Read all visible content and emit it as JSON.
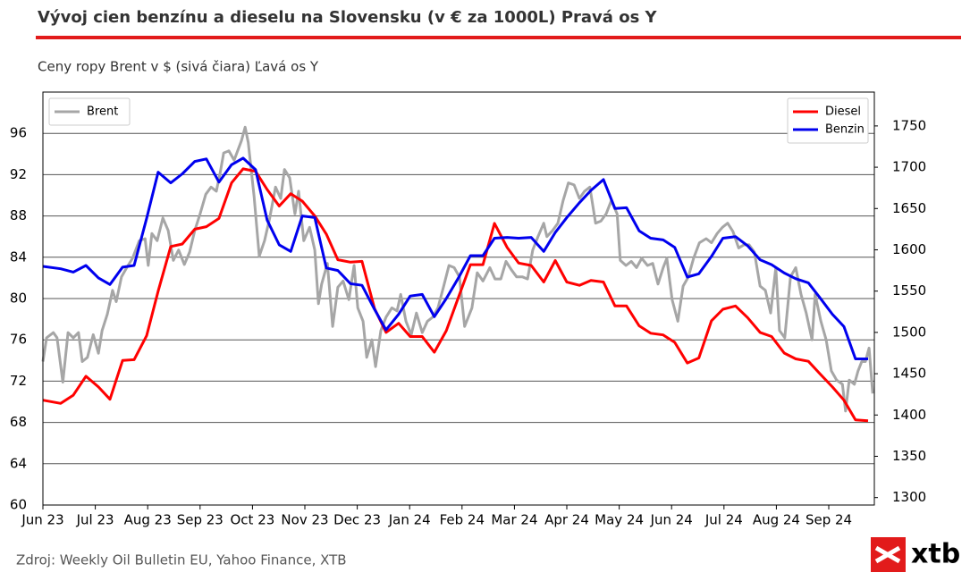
{
  "chart_data": {
    "type": "line",
    "title": "Vývoj cien benzínu a dieselu na Slovensku (v € za 1000L) Pravá os Y",
    "subtitle": "Ceny ropy Brent v $ (sivá čiara) Ľavá os Y",
    "source": "Zdroj: Weekly Oil Bulletin EU, Yahoo Finance, XTB",
    "logo": "xtb",
    "grid": true,
    "legend": {
      "y": "upper left",
      "y2": "upper right"
    },
    "xlim": [
      0,
      15.87
    ],
    "xticks": [
      {
        "value": 0,
        "label": "Jun 23"
      },
      {
        "value": 1,
        "label": "Jul 23"
      },
      {
        "value": 2,
        "label": "Aug 23"
      },
      {
        "value": 3,
        "label": "Sep 23"
      },
      {
        "value": 4,
        "label": "Oct 23"
      },
      {
        "value": 5,
        "label": "Nov 23"
      },
      {
        "value": 6,
        "label": "Dec 23"
      },
      {
        "value": 7,
        "label": "Jan 24"
      },
      {
        "value": 8,
        "label": "Feb 24"
      },
      {
        "value": 9,
        "label": "Mar 24"
      },
      {
        "value": 10,
        "label": "Apr 24"
      },
      {
        "value": 11,
        "label": "May 24"
      },
      {
        "value": 12,
        "label": "Jun 24"
      },
      {
        "value": 13,
        "label": "Jul 24"
      },
      {
        "value": 14,
        "label": "Aug 24"
      },
      {
        "value": 15,
        "label": "Sep 24"
      }
    ],
    "ylim": [
      60,
      100
    ],
    "yticks": [
      60,
      64,
      68,
      72,
      76,
      80,
      84,
      88,
      92,
      96
    ],
    "y2lim": [
      1291,
      1791
    ],
    "y2ticks": [
      1300,
      1350,
      1400,
      1450,
      1500,
      1550,
      1600,
      1650,
      1700,
      1750
    ],
    "series": [
      {
        "name": "Brent",
        "color": "#a6a6a6",
        "axis": "y",
        "x": [
          0,
          0.07,
          0.2,
          0.27,
          0.38,
          0.48,
          0.58,
          0.68,
          0.75,
          0.85,
          0.96,
          1.06,
          1.13,
          1.23,
          1.33,
          1.4,
          1.5,
          1.6,
          1.71,
          1.84,
          1.95,
          2.01,
          2.08,
          2.18,
          2.29,
          2.39,
          2.49,
          2.59,
          2.7,
          2.8,
          2.9,
          3.0,
          3.11,
          3.21,
          3.31,
          3.38,
          3.45,
          3.55,
          3.65,
          3.79,
          3.86,
          3.92,
          4.03,
          4.13,
          4.23,
          4.33,
          4.44,
          4.54,
          4.61,
          4.71,
          4.81,
          4.88,
          4.98,
          5.09,
          5.19,
          5.26,
          5.32,
          5.43,
          5.53,
          5.63,
          5.73,
          5.84,
          5.94,
          6.01,
          6.11,
          6.18,
          6.28,
          6.35,
          6.45,
          6.55,
          6.66,
          6.76,
          6.83,
          6.93,
          7.03,
          7.13,
          7.24,
          7.34,
          7.44,
          7.54,
          7.65,
          7.75,
          7.85,
          7.95,
          8.05,
          8.19,
          8.29,
          8.4,
          8.53,
          8.63,
          8.74,
          8.84,
          8.94,
          9.04,
          9.15,
          9.25,
          9.35,
          9.45,
          9.56,
          9.62,
          9.73,
          9.83,
          9.93,
          10.03,
          10.14,
          10.24,
          10.34,
          10.44,
          10.55,
          10.65,
          10.75,
          10.85,
          10.96,
          11.02,
          11.13,
          11.23,
          11.33,
          11.43,
          11.54,
          11.64,
          11.74,
          11.84,
          11.91,
          12.01,
          12.12,
          12.22,
          12.32,
          12.42,
          12.53,
          12.66,
          12.76,
          12.87,
          12.97,
          13.07,
          13.17,
          13.28,
          13.38,
          13.48,
          13.58,
          13.69,
          13.79,
          13.89,
          13.99,
          14.06,
          14.16,
          14.27,
          14.37,
          14.47,
          14.57,
          14.68,
          14.74,
          14.85,
          14.95,
          15.05,
          15.15,
          15.26,
          15.32,
          15.39,
          15.49,
          15.56,
          15.63,
          15.7,
          15.77,
          15.84
        ],
        "values": [
          73.9,
          76.2,
          76.7,
          76.2,
          71.9,
          76.7,
          76.2,
          76.7,
          73.9,
          74.3,
          76.5,
          74.7,
          76.9,
          78.5,
          80.8,
          79.7,
          82.1,
          83.0,
          83.9,
          85.6,
          85.8,
          83.2,
          86.3,
          85.6,
          87.8,
          86.6,
          83.7,
          84.7,
          83.3,
          84.5,
          86.6,
          88.2,
          90.1,
          90.8,
          90.4,
          92.1,
          94.1,
          94.3,
          93.4,
          95.3,
          96.6,
          95.1,
          89.9,
          84.1,
          85.6,
          87.8,
          90.8,
          89.7,
          92.5,
          91.7,
          88.2,
          90.4,
          85.6,
          86.9,
          84.7,
          79.5,
          81.4,
          83.4,
          77.3,
          81.1,
          81.7,
          79.9,
          83.2,
          79.1,
          77.8,
          74.3,
          76.0,
          73.4,
          76.9,
          78.2,
          79.1,
          78.8,
          80.4,
          77.8,
          76.5,
          78.6,
          76.7,
          77.8,
          78.2,
          79.1,
          81.2,
          83.2,
          83.0,
          82.1,
          77.3,
          79.1,
          82.5,
          81.7,
          83.0,
          81.9,
          81.9,
          83.6,
          82.8,
          82.1,
          82.1,
          81.9,
          84.7,
          86.0,
          87.3,
          86.0,
          86.6,
          87.3,
          89.5,
          91.2,
          91.0,
          89.7,
          90.4,
          90.8,
          87.3,
          87.5,
          88.2,
          89.5,
          88.2,
          83.7,
          83.2,
          83.6,
          83.0,
          83.9,
          83.2,
          83.4,
          81.4,
          83.0,
          83.9,
          79.9,
          77.8,
          81.2,
          82.1,
          83.9,
          85.4,
          85.8,
          85.4,
          86.3,
          86.9,
          87.3,
          86.5,
          84.9,
          85.2,
          85.2,
          84.5,
          81.2,
          80.8,
          78.6,
          83.0,
          76.9,
          76.2,
          82.1,
          83.0,
          80.4,
          78.6,
          76.0,
          80.4,
          77.8,
          76.0,
          73.0,
          72.1,
          71.7,
          69.1,
          72.1,
          71.7,
          73.0,
          73.9,
          73.9,
          75.2,
          70.8
        ]
      },
      {
        "name": "Diesel",
        "color": "#ff0000",
        "axis": "y2",
        "x": [
          0,
          0.34,
          0.58,
          0.82,
          1.06,
          1.28,
          1.52,
          1.74,
          1.98,
          2.2,
          2.44,
          2.66,
          2.9,
          3.12,
          3.36,
          3.6,
          3.82,
          4.06,
          4.28,
          4.51,
          4.73,
          4.95,
          5.19,
          5.41,
          5.63,
          5.87,
          6.09,
          6.33,
          6.55,
          6.79,
          7.01,
          7.24,
          7.47,
          7.7,
          7.94,
          8.16,
          8.4,
          8.62,
          8.86,
          9.08,
          9.32,
          9.56,
          9.78,
          10.0,
          10.24,
          10.46,
          10.7,
          10.92,
          11.14,
          11.38,
          11.6,
          11.84,
          12.06,
          12.3,
          12.52,
          12.76,
          12.98,
          13.22,
          13.45,
          13.69,
          13.91,
          14.15,
          14.37,
          14.61,
          14.83,
          15.07,
          15.29,
          15.51,
          15.75
        ],
        "values": [
          1418,
          1414,
          1424,
          1447,
          1434,
          1419,
          1466,
          1467,
          1496,
          1550,
          1604,
          1607,
          1625,
          1628,
          1638,
          1681,
          1698,
          1695,
          1673,
          1653,
          1668,
          1659,
          1641,
          1619,
          1588,
          1585,
          1586,
          1529,
          1500,
          1511,
          1495,
          1495,
          1476,
          1502,
          1544,
          1582,
          1582,
          1632,
          1603,
          1584,
          1581,
          1561,
          1587,
          1561,
          1557,
          1563,
          1561,
          1532,
          1532,
          1508,
          1499,
          1497,
          1488,
          1463,
          1469,
          1514,
          1528,
          1532,
          1518,
          1500,
          1495,
          1475,
          1468,
          1465,
          1450,
          1434,
          1418,
          1394,
          1393
        ]
      },
      {
        "name": "Benzin",
        "color": "#0000ee",
        "axis": "y2",
        "x": [
          0,
          0.34,
          0.58,
          0.82,
          1.06,
          1.28,
          1.52,
          1.74,
          1.98,
          2.2,
          2.44,
          2.66,
          2.9,
          3.12,
          3.36,
          3.6,
          3.82,
          4.06,
          4.28,
          4.51,
          4.73,
          4.95,
          5.19,
          5.41,
          5.63,
          5.87,
          6.09,
          6.33,
          6.55,
          6.79,
          7.01,
          7.24,
          7.47,
          7.7,
          7.94,
          8.16,
          8.4,
          8.62,
          8.86,
          9.08,
          9.32,
          9.56,
          9.78,
          10.0,
          10.24,
          10.46,
          10.7,
          10.92,
          11.14,
          11.38,
          11.6,
          11.84,
          12.06,
          12.3,
          12.52,
          12.76,
          12.98,
          13.22,
          13.45,
          13.69,
          13.91,
          14.15,
          14.37,
          14.61,
          14.83,
          15.07,
          15.29,
          15.51,
          15.75
        ],
        "values": [
          1580,
          1577,
          1573,
          1581,
          1566,
          1558,
          1579,
          1581,
          1638,
          1694,
          1681,
          1692,
          1707,
          1710,
          1682,
          1703,
          1711,
          1697,
          1636,
          1606,
          1598,
          1641,
          1639,
          1578,
          1575,
          1559,
          1557,
          1528,
          1503,
          1522,
          1544,
          1546,
          1519,
          1541,
          1567,
          1593,
          1593,
          1614,
          1615,
          1614,
          1615,
          1598,
          1621,
          1639,
          1657,
          1672,
          1685,
          1650,
          1651,
          1623,
          1614,
          1612,
          1603,
          1567,
          1571,
          1592,
          1614,
          1616,
          1605,
          1588,
          1582,
          1572,
          1565,
          1560,
          1542,
          1522,
          1507,
          1468,
          1468
        ]
      }
    ]
  }
}
